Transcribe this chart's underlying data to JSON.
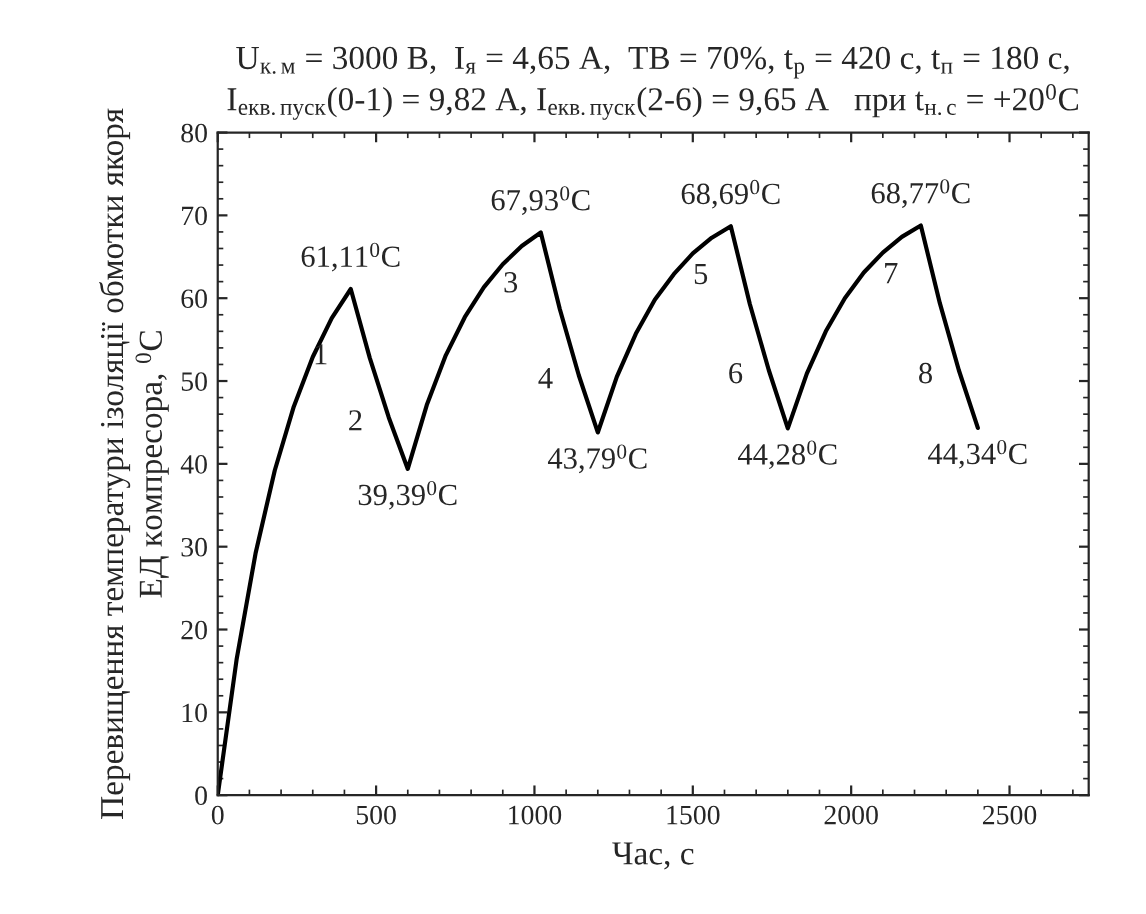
{
  "chart_data": {
    "type": "line",
    "title": "U$_{к.м}$ = 3000 В,  I$_{я}$ = 4,65 А,  ТВ = 70%, t$_{р}$ = 420 с, t$_{п}$ = 180 с,\nI$_{екв.пуск}$(0-1) = 9,82 А, I$_{екв.пуск}$(2-6) = 9,65 А   при t$_{н.с}$ = +20$^{0}$С",
    "xlabel": "Час, с",
    "ylabel": "Перевищення температури ізоляції обмотки якоря\nЕД компресора, $^{0}$С",
    "x": [
      0,
      60,
      120,
      180,
      240,
      300,
      360,
      420,
      480,
      540,
      600,
      660,
      720,
      780,
      840,
      900,
      960,
      1020,
      1080,
      1140,
      1200,
      1260,
      1320,
      1380,
      1440,
      1500,
      1560,
      1620,
      1680,
      1740,
      1800,
      1860,
      1920,
      1980,
      2040,
      2100,
      2160,
      2220,
      2280,
      2340,
      2400
    ],
    "series": [
      {
        "color": "#000000",
        "values": [
          0,
          16.5,
          29.3,
          39.2,
          46.9,
          52.9,
          57.6,
          61.11,
          52.8,
          45.6,
          39.39,
          47.1,
          53.1,
          57.7,
          61.3,
          64.1,
          66.3,
          67.93,
          58.7,
          50.7,
          43.79,
          50.5,
          55.7,
          59.8,
          62.9,
          65.4,
          67.3,
          68.69,
          59.3,
          51.3,
          44.28,
          50.9,
          56.0,
          60.0,
          63.1,
          65.5,
          67.4,
          68.77,
          59.4,
          51.3,
          44.34
        ]
      }
    ],
    "xlim": [
      0,
      2750
    ],
    "ylim": [
      0,
      80
    ],
    "xticks": [
      0,
      500,
      1000,
      1500,
      2000,
      2500
    ],
    "yticks": [
      0,
      10,
      20,
      30,
      40,
      50,
      60,
      70,
      80
    ],
    "grid": false,
    "legend": false,
    "marker": "none",
    "line_style": "solid",
    "annotations": [
      {
        "text": "61,11$^{0}$C",
        "x": 420,
        "y": 61.11
      },
      {
        "text": "39,39$^{0}$C",
        "x": 600,
        "y": 39.39
      },
      {
        "text": "67,93$^{0}$C",
        "x": 1020,
        "y": 67.93
      },
      {
        "text": "43,79$^{0}$C",
        "x": 1200,
        "y": 43.79
      },
      {
        "text": "68,69$^{0}$C",
        "x": 1620,
        "y": 68.69
      },
      {
        "text": "44,28$^{0}$C",
        "x": 1800,
        "y": 44.28
      },
      {
        "text": "68,77$^{0}$C",
        "x": 2220,
        "y": 68.77
      },
      {
        "text": "44,34$^{0}$C",
        "x": 2400,
        "y": 44.34
      },
      {
        "text": "1",
        "x": 360,
        "y": 57.6
      },
      {
        "text": "2",
        "x": 540,
        "y": 45.6
      },
      {
        "text": "3",
        "x": 960,
        "y": 66.3
      },
      {
        "text": "4",
        "x": 1140,
        "y": 50.7
      },
      {
        "text": "5",
        "x": 1560,
        "y": 67.3
      },
      {
        "text": "6",
        "x": 1740,
        "y": 51.3
      },
      {
        "text": "7",
        "x": 2160,
        "y": 67.4
      },
      {
        "text": "8",
        "x": 2340,
        "y": 51.3
      }
    ]
  }
}
